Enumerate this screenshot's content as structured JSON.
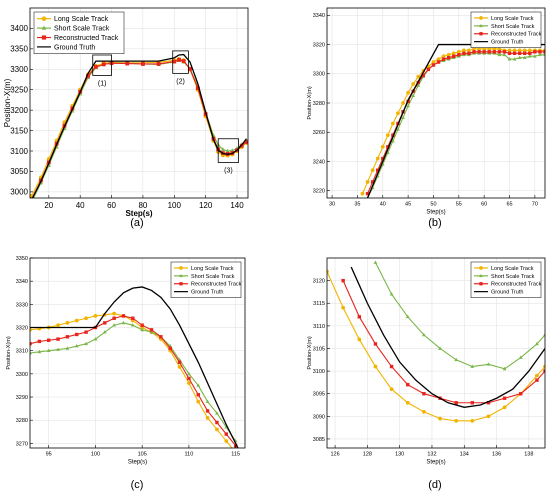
{
  "figure": {
    "panel_labels": [
      "(a)",
      "(b)",
      "(c)",
      "(d)"
    ]
  },
  "chart_data": [
    {
      "panel": "(a)",
      "type": "line",
      "xlabel": "Step(s)",
      "ylabel": "Position-X(m)",
      "xlim": [
        8,
        147
      ],
      "ylim": [
        2985,
        3450
      ],
      "xticks": [
        20,
        40,
        60,
        80,
        100,
        120,
        140
      ],
      "yticks": [
        3000,
        3050,
        3100,
        3150,
        3200,
        3250,
        3300,
        3350,
        3400
      ],
      "grid": true,
      "legend_position": "top-left",
      "annotations": [
        {
          "label": "(1)",
          "x": [
            48,
            60
          ],
          "y": [
            3285,
            3335
          ]
        },
        {
          "label": "(2)",
          "x": [
            99,
            109
          ],
          "y": [
            3290,
            3345
          ]
        },
        {
          "label": "(3)",
          "x": [
            128,
            141
          ],
          "y": [
            3072,
            3130
          ]
        }
      ],
      "series": [
        {
          "name": "Long Scale Track",
          "color": "#f2b400",
          "marker": "circle",
          "x": [
            9,
            15,
            20,
            25,
            30,
            35,
            40,
            45,
            50,
            55,
            60,
            70,
            80,
            90,
            100,
            103,
            106,
            110,
            115,
            120,
            125,
            128,
            131,
            134,
            137,
            140,
            143,
            146
          ],
          "y": [
            2990,
            3035,
            3080,
            3125,
            3170,
            3210,
            3250,
            3287,
            3308,
            3315,
            3317,
            3316,
            3316,
            3317,
            3322,
            3325,
            3322,
            3300,
            3250,
            3185,
            3125,
            3098,
            3090,
            3089,
            3092,
            3100,
            3110,
            3120
          ]
        },
        {
          "name": "Short Scale Track",
          "color": "#7ab648",
          "marker": "triangle",
          "x": [
            9,
            15,
            20,
            25,
            30,
            35,
            40,
            45,
            50,
            55,
            60,
            70,
            80,
            90,
            100,
            103,
            106,
            110,
            115,
            120,
            125,
            128,
            131,
            134,
            137,
            140,
            143,
            146
          ],
          "y": [
            2975,
            3022,
            3065,
            3110,
            3155,
            3198,
            3240,
            3280,
            3304,
            3312,
            3315,
            3315,
            3313,
            3312,
            3318,
            3322,
            3318,
            3302,
            3258,
            3195,
            3138,
            3115,
            3104,
            3100,
            3101,
            3106,
            3116,
            3126
          ]
        },
        {
          "name": "Reconstructed Track",
          "color": "#e8241c",
          "marker": "square",
          "x": [
            9,
            15,
            20,
            25,
            30,
            35,
            40,
            45,
            50,
            55,
            60,
            70,
            80,
            90,
            100,
            103,
            106,
            110,
            115,
            120,
            125,
            128,
            131,
            134,
            137,
            140,
            143,
            146
          ],
          "y": [
            2982,
            3028,
            3072,
            3118,
            3162,
            3204,
            3245,
            3284,
            3306,
            3312,
            3315,
            3314,
            3313,
            3313,
            3319,
            3323,
            3320,
            3301,
            3254,
            3190,
            3130,
            3104,
            3095,
            3093,
            3095,
            3102,
            3113,
            3122
          ]
        },
        {
          "name": "Ground Truth",
          "color": "#000000",
          "marker": "none",
          "x": [
            9,
            15,
            20,
            25,
            30,
            35,
            40,
            45,
            50,
            55,
            60,
            70,
            80,
            90,
            100,
            103,
            106,
            110,
            115,
            120,
            125,
            128,
            131,
            134,
            137,
            140,
            143,
            146
          ],
          "y": [
            2980,
            3026,
            3070,
            3116,
            3160,
            3202,
            3244,
            3290,
            3320,
            3320,
            3320,
            3320,
            3320,
            3320,
            3328,
            3335,
            3336,
            3318,
            3265,
            3195,
            3128,
            3102,
            3094,
            3092,
            3094,
            3102,
            3115,
            3130
          ]
        }
      ]
    },
    {
      "panel": "(b)",
      "type": "line",
      "xlabel": "Step(s)",
      "ylabel": "Position-X(m)",
      "xlim": [
        29,
        72
      ],
      "ylim": [
        3215,
        3345
      ],
      "xticks": [
        30,
        35,
        40,
        45,
        50,
        55,
        60,
        65,
        70
      ],
      "yticks": [
        3220,
        3240,
        3260,
        3280,
        3300,
        3320,
        3340
      ],
      "grid": true,
      "legend_position": "top-right",
      "series": [
        {
          "name": "Long Scale Track",
          "color": "#f2b400",
          "marker": "circle",
          "x": [
            36,
            37,
            38,
            39,
            40,
            41,
            42,
            43,
            44,
            45,
            46,
            47,
            48,
            49,
            50,
            51,
            52,
            53,
            54,
            55,
            56,
            57,
            58,
            59,
            60,
            61,
            62,
            63,
            64,
            65,
            66,
            67,
            68,
            69,
            70,
            71,
            72
          ],
          "y": [
            3218,
            3226,
            3234,
            3242,
            3250,
            3258,
            3266,
            3273,
            3280,
            3287,
            3293,
            3298,
            3302,
            3305,
            3308,
            3310,
            3312,
            3313,
            3314,
            3315,
            3316,
            3316,
            3317,
            3317,
            3317,
            3317,
            3317,
            3317,
            3316,
            3316,
            3316,
            3316,
            3316,
            3316,
            3316,
            3316,
            3316
          ]
        },
        {
          "name": "Short Scale Track",
          "color": "#7ab648",
          "marker": "triangle",
          "x": [
            37,
            38,
            39,
            40,
            41,
            42,
            43,
            44,
            45,
            46,
            47,
            48,
            49,
            50,
            51,
            52,
            53,
            54,
            55,
            56,
            57,
            58,
            59,
            60,
            61,
            62,
            63,
            64,
            65,
            66,
            67,
            68,
            69,
            70,
            71,
            72
          ],
          "y": [
            3215,
            3222,
            3230,
            3238,
            3246,
            3254,
            3262,
            3270,
            3278,
            3285,
            3292,
            3298,
            3303,
            3306,
            3308,
            3309,
            3310,
            3311,
            3312,
            3313,
            3313,
            3314,
            3314,
            3314,
            3314,
            3314,
            3313,
            3313,
            3310,
            3310,
            3311,
            3311,
            3312,
            3312,
            3313,
            3313
          ]
        },
        {
          "name": "Reconstructed Track",
          "color": "#e8241c",
          "marker": "square",
          "x": [
            37,
            38,
            39,
            40,
            41,
            42,
            43,
            44,
            45,
            46,
            47,
            48,
            49,
            50,
            51,
            52,
            53,
            54,
            55,
            56,
            57,
            58,
            59,
            60,
            61,
            62,
            63,
            64,
            65,
            66,
            67,
            68,
            69,
            70,
            71,
            72
          ],
          "y": [
            3218,
            3226,
            3234,
            3242,
            3250,
            3258,
            3266,
            3274,
            3281,
            3288,
            3294,
            3299,
            3303,
            3306,
            3308,
            3310,
            3311,
            3312,
            3313,
            3314,
            3314,
            3315,
            3315,
            3315,
            3315,
            3315,
            3315,
            3315,
            3314,
            3314,
            3314,
            3314,
            3314,
            3315,
            3315,
            3315
          ]
        },
        {
          "name": "Ground Truth",
          "color": "#000000",
          "marker": "none",
          "x": [
            37,
            40,
            45,
            51,
            55,
            60,
            65,
            70,
            72
          ],
          "y": [
            3215,
            3240,
            3282,
            3320,
            3320,
            3320,
            3320,
            3320,
            3320
          ]
        }
      ]
    },
    {
      "panel": "(c)",
      "type": "line",
      "xlabel": "Step(s)",
      "ylabel": "Position-X(m)",
      "xlim": [
        93,
        116
      ],
      "ylim": [
        3268,
        3350
      ],
      "xticks": [
        95,
        100,
        105,
        110,
        115
      ],
      "yticks": [
        3270,
        3280,
        3290,
        3300,
        3310,
        3320,
        3330,
        3340,
        3350
      ],
      "grid": true,
      "legend_position": "top-right",
      "series": [
        {
          "name": "Long Scale Track",
          "color": "#f2b400",
          "marker": "circle",
          "x": [
            93,
            94,
            95,
            96,
            97,
            98,
            99,
            100,
            101,
            102,
            103,
            104,
            105,
            106,
            107,
            108,
            109,
            110,
            111,
            112,
            113,
            114,
            115
          ],
          "y": [
            3319,
            3319.5,
            3320,
            3321,
            3322,
            3323,
            3324,
            3325,
            3325.5,
            3326,
            3325,
            3323,
            3320,
            3318,
            3315,
            3310,
            3303,
            3296,
            3288,
            3281,
            3276,
            3271,
            3266
          ]
        },
        {
          "name": "Short Scale Track",
          "color": "#7ab648",
          "marker": "triangle",
          "x": [
            93,
            94,
            95,
            96,
            97,
            98,
            99,
            100,
            101,
            102,
            103,
            104,
            105,
            106,
            107,
            108,
            109,
            110,
            111,
            112,
            113,
            114,
            115
          ],
          "y": [
            3309,
            3309.5,
            3310,
            3310.5,
            3311,
            3312,
            3313,
            3315,
            3318,
            3321,
            3322,
            3321,
            3319,
            3318,
            3316,
            3312,
            3306,
            3300,
            3295,
            3288,
            3283,
            3277,
            3271
          ]
        },
        {
          "name": "Reconstructed Track",
          "color": "#e8241c",
          "marker": "square",
          "x": [
            93,
            94,
            95,
            96,
            97,
            98,
            99,
            100,
            101,
            102,
            103,
            104,
            105,
            106,
            107,
            108,
            109,
            110,
            111,
            112,
            113,
            114,
            115
          ],
          "y": [
            3313,
            3314,
            3314.5,
            3315,
            3316,
            3317,
            3318,
            3320,
            3322,
            3324,
            3325,
            3324,
            3321,
            3319,
            3316,
            3311,
            3305,
            3298,
            3291,
            3284,
            3279,
            3274,
            3269
          ]
        },
        {
          "name": "Ground Truth",
          "color": "#000000",
          "marker": "none",
          "x": [
            93,
            100,
            101,
            102,
            103,
            104,
            105,
            106,
            107,
            108,
            109,
            110,
            111,
            112,
            113,
            114,
            115,
            116
          ],
          "y": [
            3320,
            3320,
            3326,
            3331,
            3335,
            3337,
            3337.5,
            3336,
            3333,
            3328,
            3321,
            3313,
            3305,
            3296,
            3287,
            3278,
            3270,
            3262
          ]
        }
      ]
    },
    {
      "panel": "(d)",
      "type": "line",
      "xlabel": "Step(s)",
      "ylabel": "Position-X(m)",
      "xlim": [
        125.5,
        139
      ],
      "ylim": [
        3083,
        3125
      ],
      "xticks": [
        126,
        128,
        130,
        132,
        134,
        136,
        138
      ],
      "yticks": [
        3085,
        3090,
        3095,
        3100,
        3105,
        3110,
        3115,
        3120
      ],
      "grid": true,
      "legend_position": "top-right",
      "series": [
        {
          "name": "Long Scale Track",
          "color": "#f2b400",
          "marker": "circle",
          "x": [
            125.5,
            126.5,
            127.5,
            128.5,
            129.5,
            130.5,
            131.5,
            132.5,
            133.5,
            134.5,
            135.5,
            136.5,
            137.5,
            138.5,
            139
          ],
          "y": [
            3122,
            3114,
            3107,
            3101,
            3096,
            3093,
            3091,
            3089.5,
            3089,
            3089,
            3090,
            3092,
            3095,
            3099,
            3101
          ]
        },
        {
          "name": "Short Scale Track",
          "color": "#7ab648",
          "marker": "triangle",
          "x": [
            128.5,
            129.5,
            130.5,
            131.5,
            132.5,
            133.5,
            134.5,
            135.5,
            136.5,
            137.5,
            138.5,
            139
          ],
          "y": [
            3124,
            3117,
            3112,
            3108,
            3105,
            3102.5,
            3101,
            3101.5,
            3100.5,
            3103,
            3106,
            3108
          ]
        },
        {
          "name": "Reconstructed Track",
          "color": "#e8241c",
          "marker": "square",
          "x": [
            126.5,
            127.5,
            128.5,
            129.5,
            130.5,
            131.5,
            132.5,
            133.5,
            134.5,
            135.5,
            136.5,
            137.5,
            138.5,
            139
          ],
          "y": [
            3120,
            3112,
            3106,
            3101,
            3097,
            3095,
            3094,
            3093,
            3093,
            3093,
            3094,
            3095,
            3098,
            3100
          ]
        },
        {
          "name": "Ground Truth",
          "color": "#000000",
          "marker": "none",
          "x": [
            127,
            128,
            129,
            130,
            131,
            132,
            133,
            134,
            135,
            136,
            137,
            138,
            139
          ],
          "y": [
            3123,
            3115,
            3108,
            3102,
            3098,
            3095,
            3093,
            3092,
            3092.5,
            3094,
            3096,
            3100,
            3105
          ]
        }
      ]
    }
  ]
}
